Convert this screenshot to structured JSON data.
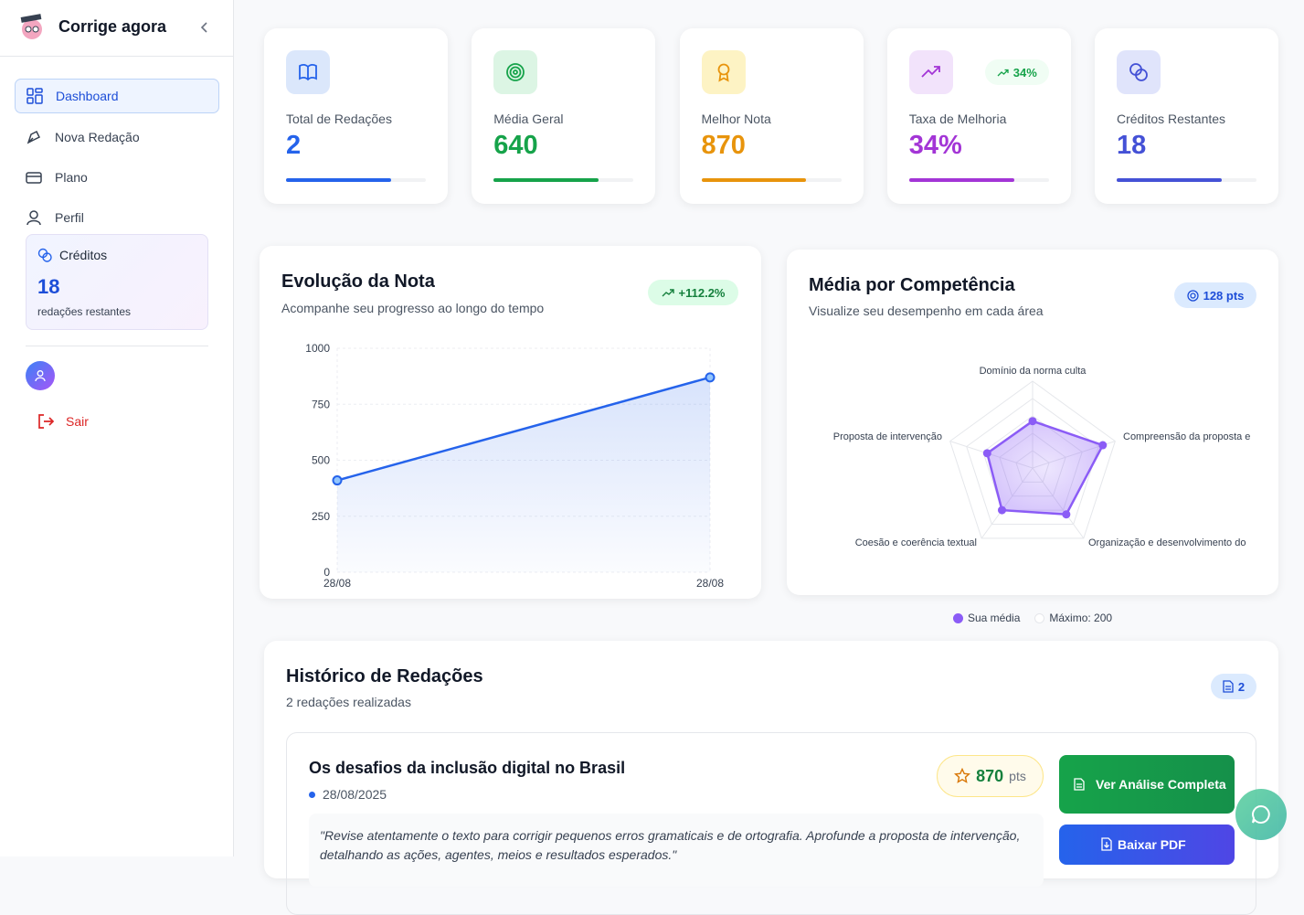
{
  "sidebar": {
    "brand": "Corrige agora",
    "nav": [
      "Dashboard",
      "Nova Redação",
      "Plano",
      "Perfil"
    ],
    "credits": {
      "label": "Créditos",
      "value": "18",
      "caption": "redações restantes"
    },
    "logout": "Sair"
  },
  "stats": [
    {
      "label": "Total de Redações",
      "value": "2",
      "color": "#2563eb"
    },
    {
      "label": "Média Geral",
      "value": "640",
      "color": "#16a34a"
    },
    {
      "label": "Melhor Nota",
      "value": "870",
      "color": "#e8940c"
    },
    {
      "label": "Taxa de Melhoria",
      "value": "34%",
      "badge": "34%",
      "color": "#a335d6"
    },
    {
      "label": "Créditos Restantes",
      "value": "18",
      "color": "#4451d6"
    }
  ],
  "line_chart": {
    "type": "line",
    "title": "Evolução da Nota",
    "subtitle": "Acompanhe seu progresso ao longo do tempo",
    "badge": "+112.2%",
    "categories": [
      "28/08",
      "28/08"
    ],
    "values": [
      410,
      870
    ],
    "color": "#2563eb",
    "ylim": [
      0,
      1000
    ],
    "yticks": [
      0,
      250,
      500,
      750,
      1000
    ],
    "grid": true
  },
  "radar_chart": {
    "type": "radar",
    "title": "Média por Competência",
    "subtitle": "Visualize seu desempenho em cada área",
    "badge": "128 pts",
    "categories": [
      "Domínio da norma culta",
      "Compreensão da proposta e",
      "Organização e desenvolvimento do",
      "Coesão e coerência textual",
      "Proposta de intervenção"
    ],
    "series": [
      {
        "name": "Sua média",
        "color": "#8b5cf6",
        "values": [
          108,
          170,
          132,
          120,
          110
        ]
      },
      {
        "name": "Máximo: 200",
        "color": "#e5e7eb",
        "values": [
          200,
          200,
          200,
          200,
          200
        ]
      }
    ],
    "ylim": [
      0,
      200
    ]
  },
  "history": {
    "title": "Histórico de Redações",
    "subtitle": "2 redações realizadas",
    "count": "2",
    "items": [
      {
        "title": "Os desafios da inclusão digital no Brasil",
        "date": "28/08/2025",
        "score": "870",
        "unit": "pts",
        "feedback": "\"Revise atentamente o texto para corrigir pequenos erros gramaticais e de ortografia. Aprofunde a proposta de intervenção, detalhando as ações, agentes, meios e resultados esperados.\"",
        "actions": [
          "Ver Análise Completa",
          "Baixar PDF"
        ]
      }
    ]
  }
}
